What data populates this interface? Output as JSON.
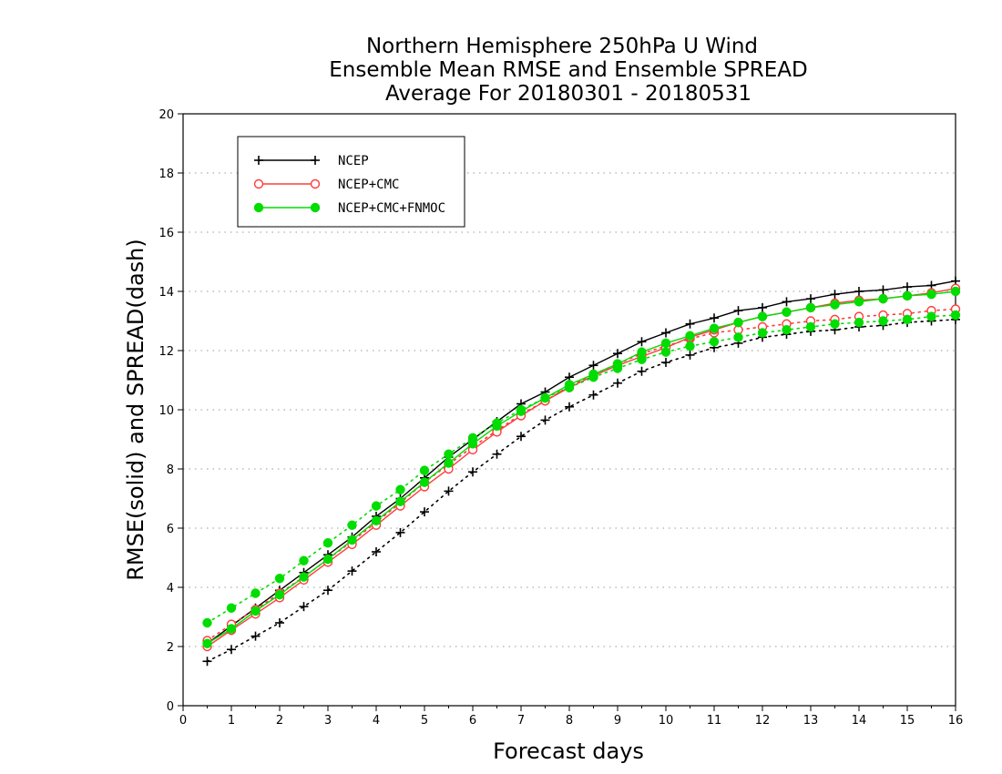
{
  "chart_data": {
    "type": "line",
    "title_lines": [
      "Northern Hemisphere 250hPa U Wind",
      "Ensemble Mean RMSE and Ensemble SPREAD",
      "Average For 20180301 - 20180531"
    ],
    "xlabel": "Forecast days",
    "ylabel": "RMSE(solid) and SPREAD(dash)",
    "xlim": [
      0,
      16
    ],
    "ylim": [
      0,
      20
    ],
    "xticks": [
      0,
      1,
      2,
      3,
      4,
      5,
      6,
      7,
      8,
      9,
      10,
      11,
      12,
      13,
      14,
      15,
      16
    ],
    "yticks": [
      0,
      2,
      4,
      6,
      8,
      10,
      12,
      14,
      16,
      18,
      20
    ],
    "grid": "dotted horizontal",
    "legend_position": "top-left",
    "x": [
      0.5,
      1,
      1.5,
      2,
      2.5,
      3,
      3.5,
      4,
      4.5,
      5,
      5.5,
      6,
      6.5,
      7,
      7.5,
      8,
      8.5,
      9,
      9.5,
      10,
      10.5,
      11,
      11.5,
      12,
      12.5,
      13,
      13.5,
      14,
      14.5,
      15,
      15.5,
      16
    ],
    "series": [
      {
        "name": "NCEP",
        "color": "#000000",
        "marker": "plus",
        "rmse": [
          2.1,
          2.7,
          3.3,
          3.9,
          4.5,
          5.1,
          5.7,
          6.4,
          7.0,
          7.7,
          8.4,
          9.0,
          9.6,
          10.2,
          10.6,
          11.1,
          11.5,
          11.9,
          12.3,
          12.6,
          12.9,
          13.1,
          13.35,
          13.45,
          13.65,
          13.75,
          13.9,
          14.0,
          14.05,
          14.15,
          14.2,
          14.35
        ],
        "spread": [
          1.5,
          1.9,
          2.35,
          2.8,
          3.35,
          3.9,
          4.55,
          5.2,
          5.85,
          6.55,
          7.25,
          7.9,
          8.5,
          9.1,
          9.65,
          10.1,
          10.5,
          10.9,
          11.3,
          11.6,
          11.85,
          12.1,
          12.25,
          12.45,
          12.55,
          12.65,
          12.7,
          12.8,
          12.85,
          12.95,
          13.0,
          13.05
        ]
      },
      {
        "name": "NCEP+CMC",
        "color": "#ff3b3b",
        "marker": "open-circle",
        "rmse": [
          2.0,
          2.55,
          3.1,
          3.65,
          4.25,
          4.85,
          5.45,
          6.1,
          6.75,
          7.4,
          8.0,
          8.65,
          9.25,
          9.8,
          10.3,
          10.75,
          11.15,
          11.5,
          11.8,
          12.1,
          12.45,
          12.7,
          12.95,
          13.15,
          13.3,
          13.45,
          13.6,
          13.7,
          13.75,
          13.85,
          13.95,
          14.1
        ],
        "spread": [
          2.2,
          2.75,
          3.25,
          3.8,
          4.35,
          4.95,
          5.55,
          6.2,
          6.85,
          7.55,
          8.15,
          8.75,
          9.3,
          9.85,
          10.3,
          10.8,
          11.2,
          11.55,
          11.9,
          12.15,
          12.4,
          12.6,
          12.7,
          12.8,
          12.9,
          13.0,
          13.05,
          13.15,
          13.2,
          13.25,
          13.35,
          13.4
        ]
      },
      {
        "name": "NCEP+CMC+FNMOC",
        "color": "#00dd00",
        "marker": "filled-circle",
        "rmse": [
          2.1,
          2.6,
          3.2,
          3.75,
          4.35,
          4.95,
          5.6,
          6.25,
          6.9,
          7.55,
          8.2,
          8.85,
          9.45,
          9.95,
          10.4,
          10.85,
          11.2,
          11.55,
          11.95,
          12.25,
          12.5,
          12.75,
          12.95,
          13.15,
          13.3,
          13.45,
          13.55,
          13.65,
          13.75,
          13.85,
          13.9,
          14.0
        ],
        "spread": [
          2.8,
          3.3,
          3.8,
          4.3,
          4.9,
          5.5,
          6.1,
          6.75,
          7.3,
          7.95,
          8.5,
          9.05,
          9.55,
          10.0,
          10.4,
          10.75,
          11.1,
          11.4,
          11.7,
          11.95,
          12.15,
          12.3,
          12.45,
          12.6,
          12.7,
          12.8,
          12.9,
          12.95,
          13.0,
          13.05,
          13.15,
          13.2
        ]
      }
    ]
  }
}
